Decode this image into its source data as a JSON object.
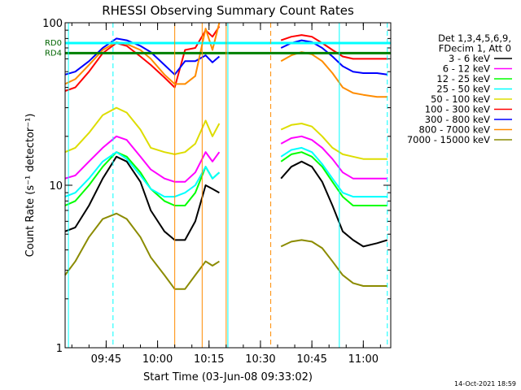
{
  "chart_data": {
    "type": "line",
    "title": "RHESSI Observing Summary Count Rates",
    "xlabel": "Start Time (03-Jun-08 09:33:02)",
    "ylabel": "Count Rate (s⁻¹ detector⁻¹)",
    "y_scale": "log",
    "ylim": [
      1,
      100
    ],
    "xlim": [
      "09:33:02",
      "11:08:00"
    ],
    "grid": false,
    "legend_position": "right",
    "legend_header": [
      "Det 1,3,4,5,6,9,",
      "FDecim 1, Att 0"
    ],
    "x_ticks": [
      "09:45",
      "10:00",
      "10:15",
      "10:30",
      "10:45",
      "11:00"
    ],
    "y_ticks": [
      "1",
      "10",
      "100"
    ],
    "timestamp": "14-Oct-2021 18:59",
    "reference_lines": [
      {
        "label": "RD0",
        "value": 75,
        "color": "#00ffff"
      },
      {
        "label": "RD4",
        "value": 65,
        "color": "#008000"
      }
    ],
    "vertical_markers": [
      {
        "time": "09:34:00",
        "color": "#00ffff",
        "style": "solid"
      },
      {
        "time": "09:47:00",
        "color": "#00ffff",
        "style": "dashed"
      },
      {
        "time": "10:05:00",
        "color": "#ff8c00",
        "style": "solid"
      },
      {
        "time": "10:13:00",
        "color": "#ff8c00",
        "style": "solid"
      },
      {
        "time": "10:20:00",
        "color": "#ff8c00",
        "style": "solid"
      },
      {
        "time": "10:20:30",
        "color": "#00ffff",
        "style": "solid"
      },
      {
        "time": "10:33:00",
        "color": "#ff8c00",
        "style": "dashed"
      },
      {
        "time": "10:53:00",
        "color": "#00ffff",
        "style": "solid"
      },
      {
        "time": "11:07:00",
        "color": "#00ffff",
        "style": "dashed"
      }
    ],
    "x_times": [
      "09:33",
      "09:36",
      "09:40",
      "09:44",
      "09:48",
      "09:51",
      "09:55",
      "09:58",
      "10:02",
      "10:05",
      "10:08",
      "10:11",
      "10:14",
      "10:16",
      "10:18",
      "10:20",
      "10:36",
      "10:39",
      "10:42",
      "10:45",
      "10:48",
      "10:51",
      "10:54",
      "10:57",
      "11:00",
      "11:04",
      "11:07"
    ],
    "series": [
      {
        "name": "3 - 6 keV",
        "color": "#000000",
        "values": [
          5.2,
          5.5,
          7.5,
          11,
          15,
          14,
          10.5,
          7,
          5.2,
          4.6,
          4.6,
          6,
          10,
          9.5,
          9,
          null,
          11,
          13,
          14,
          13,
          10.5,
          7.5,
          5.2,
          4.6,
          4.2,
          4.4,
          4.6
        ]
      },
      {
        "name": "6 - 12 keV",
        "color": "#ff00ff",
        "values": [
          11,
          11.5,
          14,
          17,
          20,
          19,
          15,
          12.5,
          11,
          10.5,
          10.5,
          12,
          16,
          14,
          16,
          null,
          18,
          19.5,
          20,
          19,
          17,
          14.5,
          12,
          11,
          11,
          11,
          11
        ]
      },
      {
        "name": "12 - 25 keV",
        "color": "#00ff00",
        "values": [
          7.5,
          8,
          10,
          13,
          16,
          15,
          12,
          9.5,
          8,
          7.5,
          7.5,
          9,
          13,
          11,
          12,
          null,
          14,
          15.5,
          16,
          15,
          13,
          10.5,
          8.5,
          7.5,
          7.5,
          7.5,
          7.5
        ]
      },
      {
        "name": "25 - 50 keV",
        "color": "#00ffff",
        "values": [
          8.5,
          9,
          11,
          14,
          16,
          14.5,
          11.5,
          9.5,
          8.5,
          8.5,
          9,
          10,
          13,
          11,
          12,
          null,
          15,
          16.5,
          17,
          16,
          13.5,
          11,
          9,
          8.5,
          8.5,
          8.5,
          8.5
        ]
      },
      {
        "name": "50 - 100 keV",
        "color": "#dddd00",
        "values": [
          16,
          17,
          21,
          27,
          30,
          28,
          22,
          17,
          16,
          15.5,
          16,
          18,
          25,
          20,
          24,
          null,
          22,
          23.5,
          24,
          23,
          20,
          17,
          15.5,
          15,
          14.5,
          14.5,
          14.5
        ]
      },
      {
        "name": "100 - 300 keV",
        "color": "#ff0000",
        "values": [
          38,
          40,
          50,
          65,
          75,
          72,
          62,
          55,
          46,
          40,
          68,
          70,
          90,
          82,
          95,
          null,
          78,
          82,
          84,
          82,
          75,
          68,
          62,
          60,
          60,
          60,
          60
        ]
      },
      {
        "name": "300 - 800 keV",
        "color": "#0000ff",
        "values": [
          48,
          50,
          58,
          70,
          80,
          78,
          72,
          66,
          55,
          48,
          58,
          58,
          63,
          57,
          62,
          null,
          70,
          75,
          78,
          76,
          70,
          62,
          54,
          50,
          49,
          49,
          48
        ]
      },
      {
        "name": "800 - 7000 keV",
        "color": "#ff8c00",
        "values": [
          42,
          45,
          55,
          68,
          76,
          74,
          68,
          60,
          48,
          42,
          42,
          47,
          92,
          68,
          100,
          null,
          58,
          63,
          66,
          64,
          58,
          49,
          40,
          37,
          36,
          35,
          35
        ]
      },
      {
        "name": "7000 - 15000 keV",
        "color": "#8b8b00",
        "values": [
          2.8,
          3.4,
          4.8,
          6.2,
          6.7,
          6.2,
          4.8,
          3.6,
          2.8,
          2.3,
          2.3,
          2.8,
          3.4,
          3.2,
          3.4,
          null,
          4.2,
          4.5,
          4.6,
          4.5,
          4.1,
          3.4,
          2.8,
          2.5,
          2.4,
          2.4,
          2.4
        ]
      }
    ]
  }
}
